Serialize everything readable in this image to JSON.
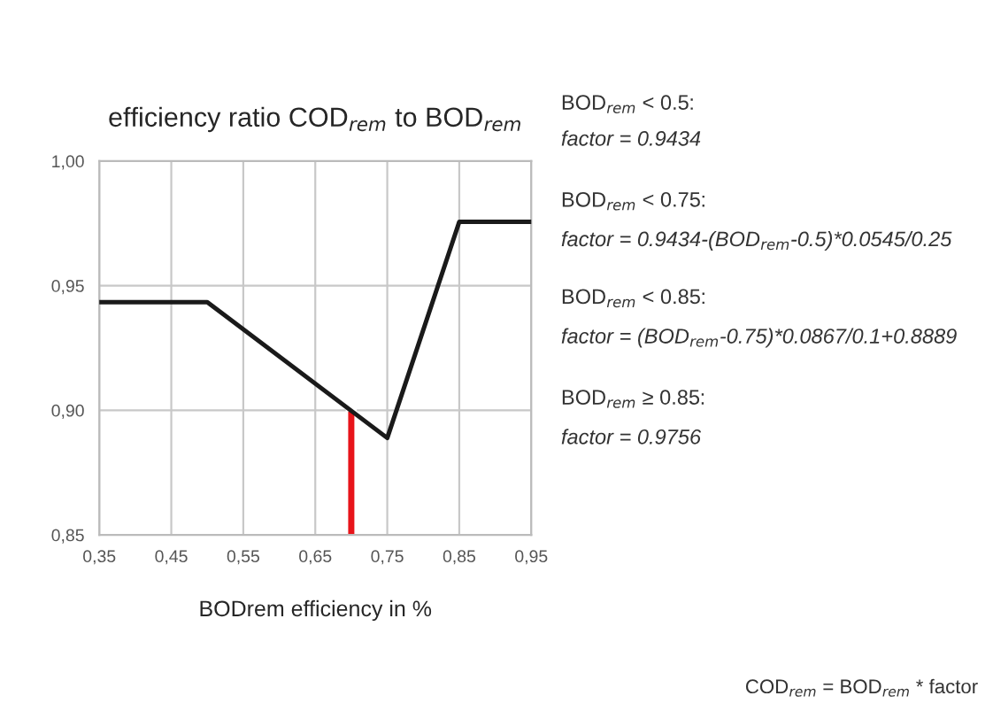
{
  "chart_data": {
    "type": "line",
    "title": "efficiency ratio COD$_{rem}$ to BOD$_{rem}$",
    "xlabel": "BODrem efficiency in %",
    "series": [
      {
        "color": "#1a1a1a",
        "x": [
          0.35,
          0.5,
          0.75,
          0.85,
          0.95
        ],
        "values": [
          0.9434,
          0.9434,
          0.8889,
          0.9756,
          0.9756
        ]
      },
      {
        "type": "bar",
        "color": "#e8141a",
        "x": [
          0.7
        ],
        "values": [
          0.9
        ]
      }
    ],
    "xlim": [
      0.35,
      0.95
    ],
    "ylim": [
      0.85,
      1.0
    ],
    "xticks": [
      {
        "value": 0.35,
        "label": "0,35"
      },
      {
        "value": 0.45,
        "label": "0,45"
      },
      {
        "value": 0.55,
        "label": "0,55"
      },
      {
        "value": 0.65,
        "label": "0,65"
      },
      {
        "value": 0.75,
        "label": "0,75"
      },
      {
        "value": 0.85,
        "label": "0,85"
      },
      {
        "value": 0.95,
        "label": "0,95"
      }
    ],
    "yticks": [
      {
        "value": 0.85,
        "label": "0,85"
      },
      {
        "value": 0.9,
        "label": "0,90"
      },
      {
        "value": 0.95,
        "label": "0,95"
      },
      {
        "value": 1.0,
        "label": "1,00"
      }
    ],
    "grid": true,
    "annotations": [
      "BOD$_{rem}$ < 0.5:",
      "factor = 0.9434",
      "BOD$_{rem}$ < 0.75:",
      "factor = 0.9434-(BOD$_{rem}$-0.5)*0.0545/0.25",
      "BOD$_{rem}$ < 0.85:",
      "factor = (BOD$_{rem}$-0.75)*0.0867/0.1+0.8889",
      "BOD$_{rem}$ ≥ 0.85:",
      "factor = 0.9756",
      "COD$_{rem}$ = BOD$_{rem}$ * factor"
    ]
  }
}
